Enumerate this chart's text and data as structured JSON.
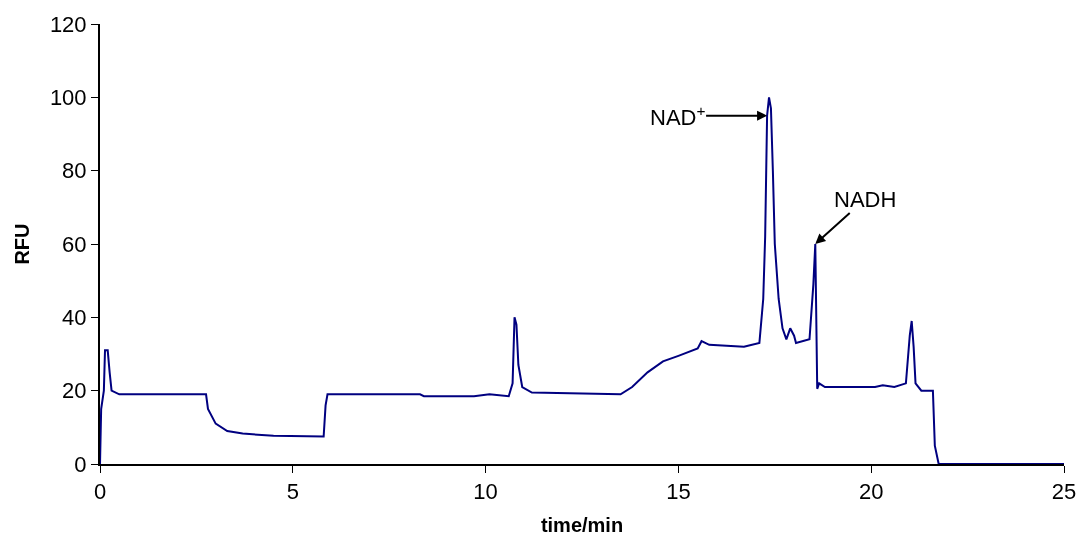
{
  "chart_data": {
    "type": "line",
    "xlabel": "time/min",
    "ylabel": "RFU",
    "xlim": [
      0,
      25
    ],
    "xticks": [
      0,
      5,
      10,
      15,
      20,
      25
    ],
    "ylim": [
      0,
      120
    ],
    "yticks": [
      0,
      20,
      40,
      60,
      80,
      100,
      120
    ],
    "grid": false,
    "legend": false,
    "marker": "none",
    "line_style": "solid",
    "series": [
      {
        "color": "#000080",
        "x": [
          0,
          0.03,
          0.1,
          0.13,
          0.2,
          0.25,
          0.3,
          0.5,
          2.75,
          2.8,
          3.0,
          3.3,
          3.7,
          4.5,
          5.8,
          5.85,
          5.9,
          8.3,
          8.4,
          9.7,
          10.1,
          10.6,
          10.7,
          10.75,
          10.8,
          10.85,
          10.95,
          11.2,
          13.5,
          13.8,
          14.2,
          14.6,
          15.0,
          15.5,
          15.6,
          15.8,
          16.7,
          17.1,
          17.2,
          17.25,
          17.3,
          17.35,
          17.4,
          17.45,
          17.5,
          17.6,
          17.7,
          17.8,
          17.9,
          18.0,
          18.05,
          18.4,
          18.5,
          18.55,
          18.6,
          18.65,
          18.8,
          20.1,
          20.3,
          20.6,
          20.9,
          21.0,
          21.05,
          21.1,
          21.15,
          21.3,
          21.6,
          21.65,
          21.75,
          25
        ],
        "values": [
          0,
          15,
          20,
          31,
          31,
          25,
          20,
          19,
          19,
          15,
          11,
          9,
          8.3,
          7.7,
          7.5,
          16,
          19,
          19,
          18.5,
          18.5,
          19,
          18.5,
          22,
          40,
          38,
          27,
          21,
          19.5,
          19,
          21,
          25,
          28,
          29.5,
          31.5,
          33.5,
          32.5,
          32,
          33,
          45,
          62,
          95,
          100,
          97,
          80,
          60,
          45,
          37,
          34,
          37,
          35,
          33,
          34,
          49,
          60,
          20.5,
          22,
          21,
          21,
          21.5,
          21,
          22,
          35,
          39,
          32,
          22,
          20,
          20,
          5,
          0,
          0
        ]
      }
    ],
    "annotations": [
      {
        "text": "NAD$^{+}$",
        "x": 17.3,
        "y": 95
      },
      {
        "text": "NADH",
        "x": 18.55,
        "y": 60
      }
    ]
  }
}
